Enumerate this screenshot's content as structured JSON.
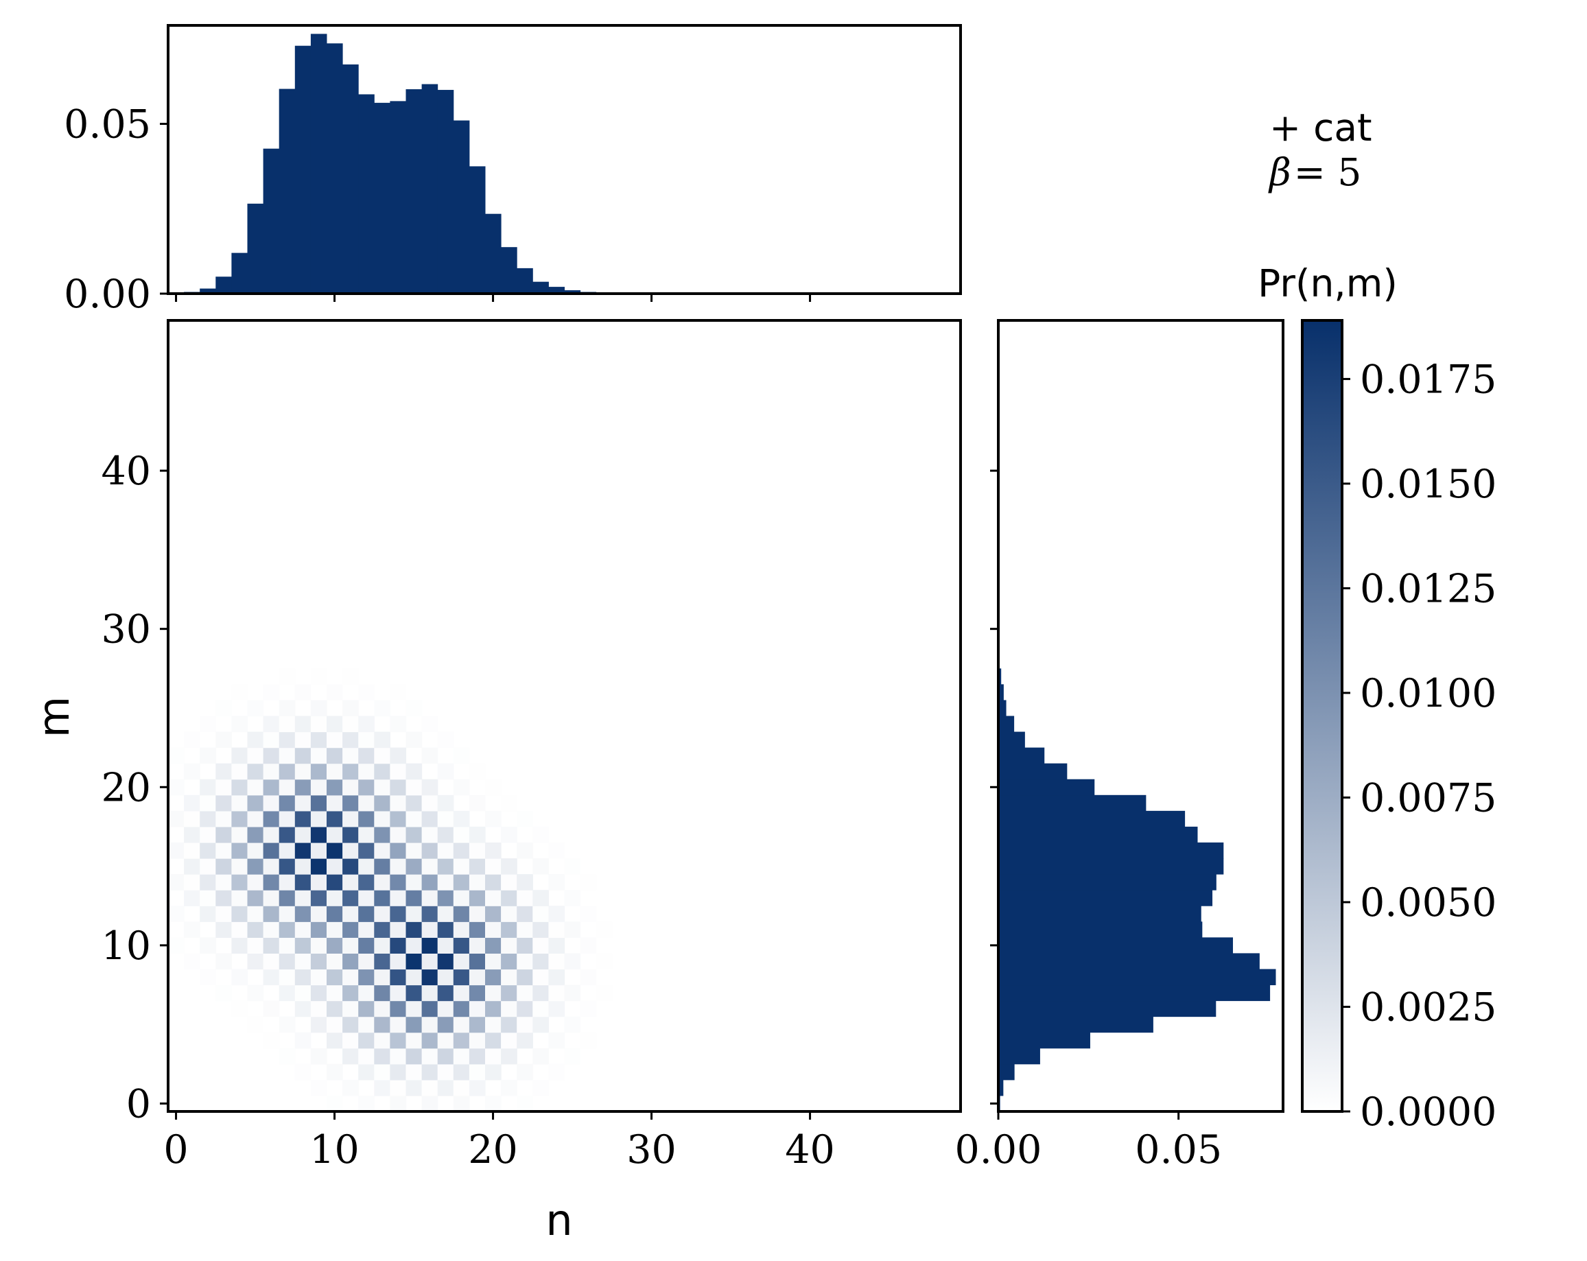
{
  "chart_data": {
    "type": "heatmap",
    "colormap": [
      "#ffffff",
      "#08306b"
    ],
    "xlabel": "n",
    "ylabel": "m",
    "xlim": [
      -0.5,
      49.5
    ],
    "ylim": [
      -0.5,
      49.5
    ],
    "x_ticks": [
      "0",
      "10",
      "20",
      "30",
      "40"
    ],
    "y_ticks": [
      "0",
      "10",
      "20",
      "30",
      "40"
    ],
    "components": [
      {
        "center_n": 9,
        "center_m": 16,
        "amplitude": 0.0189,
        "sigma": 3.4
      },
      {
        "center_n": 16,
        "center_m": 9,
        "amplitude": 0.0189,
        "sigma": 3.4
      }
    ],
    "checkerboard": "cells with n + m odd are near zero",
    "marginal_n": {
      "bins_start": 0,
      "values": [
        0.0,
        0.0005,
        0.0015,
        0.005,
        0.012,
        0.0265,
        0.0427,
        0.0603,
        0.073,
        0.0765,
        0.0737,
        0.0675,
        0.0587,
        0.0562,
        0.0567,
        0.0602,
        0.0617,
        0.06,
        0.051,
        0.0375,
        0.0235,
        0.0137,
        0.0075,
        0.0035,
        0.002,
        0.001,
        0.0005,
        0.0002,
        0.0001,
        0.0,
        0.0,
        0.0,
        0.0,
        0.0,
        0.0,
        0.0,
        0.0,
        0.0,
        0.0,
        0.0,
        0.0,
        0.0,
        0.0,
        0.0,
        0.0,
        0.0,
        0.0,
        0.0,
        0.0,
        0.0
      ],
      "ylim": [
        0,
        0.079
      ],
      "y_ticks": [
        "0.00",
        "0.05"
      ]
    },
    "marginal_m": {
      "bins_start": 0,
      "values": [
        0.0005,
        0.0014,
        0.0045,
        0.0116,
        0.0255,
        0.043,
        0.0604,
        0.0754,
        0.077,
        0.0725,
        0.0651,
        0.0566,
        0.0563,
        0.0594,
        0.0605,
        0.0625,
        0.0625,
        0.0553,
        0.0518,
        0.041,
        0.0267,
        0.0191,
        0.0128,
        0.0074,
        0.0044,
        0.0022,
        0.0015,
        0.0008,
        0.0003,
        0.0001,
        0.0,
        0.0,
        0.0,
        0.0,
        0.0,
        0.0,
        0.0,
        0.0,
        0.0,
        0.0,
        0.0,
        0.0,
        0.0,
        0.0,
        0.0,
        0.0,
        0.0,
        0.0,
        0.0,
        0.0
      ],
      "xlim": [
        0,
        0.079
      ],
      "x_ticks": [
        "0.00",
        "0.05"
      ]
    },
    "colorbar": {
      "label": "Pr(n,m)",
      "min": 0.0,
      "max": 0.0189,
      "ticks": [
        "0.0000",
        "0.0025",
        "0.0050",
        "0.0075",
        "0.0100",
        "0.0125",
        "0.0150",
        "0.0175"
      ],
      "tick_values": [
        0.0,
        0.0025,
        0.005,
        0.0075,
        0.01,
        0.0125,
        0.015,
        0.0175
      ]
    },
    "annotation": {
      "line1_symbol": "+",
      "line1_text": "cat",
      "line2_symbol": "β",
      "line2_rest": " = 5"
    }
  }
}
